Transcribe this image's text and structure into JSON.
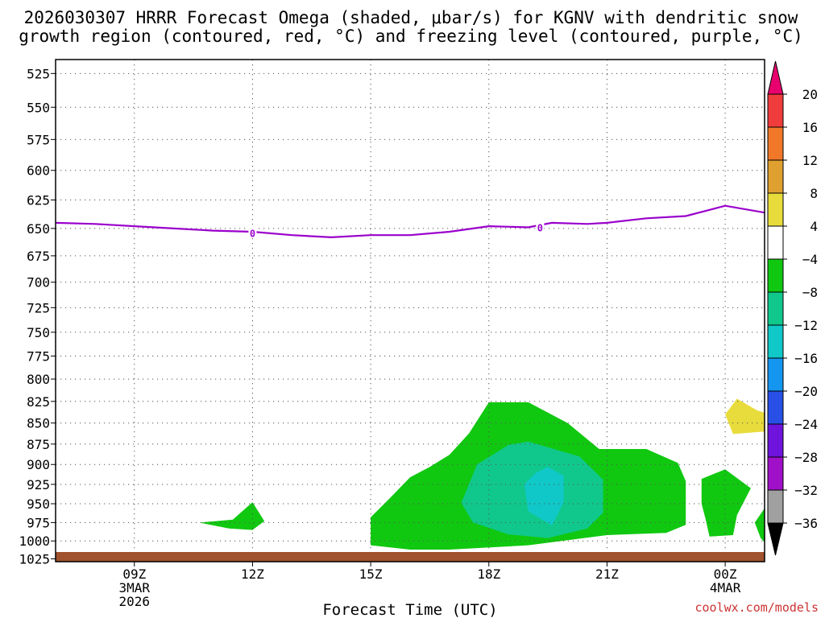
{
  "title_line1": "2026030307 HRRR Forecast Omega (shaded, μbar/s) for KGNV with dendritic snow",
  "title_line2": "growth region (contoured, red, °C) and freezing level (contoured, purple, °C)",
  "credit": "coolwx.com/models",
  "colors": {
    "freezing_line": "#9a00cc",
    "ground": "#a0522d",
    "credit": "#cc3333"
  },
  "chart_data": {
    "type": "contour",
    "xlabel": "Forecast Time (UTC)",
    "ylabel": "",
    "x_range_hours": [
      7,
      25
    ],
    "y_range_mb": [
      525,
      1025
    ],
    "y_scale": "log-pressure (inverted)",
    "grid": true,
    "y_ticks": [
      525,
      550,
      575,
      600,
      625,
      650,
      675,
      700,
      725,
      750,
      775,
      800,
      825,
      850,
      875,
      900,
      925,
      950,
      975,
      1000,
      1025
    ],
    "x_ticks": [
      {
        "hour": 9,
        "label": "09Z",
        "date": "3MAR",
        "year": "2026"
      },
      {
        "hour": 12,
        "label": "12Z"
      },
      {
        "hour": 15,
        "label": "15Z"
      },
      {
        "hour": 18,
        "label": "18Z"
      },
      {
        "hour": 21,
        "label": "21Z"
      },
      {
        "hour": 24,
        "label": "00Z",
        "date": "4MAR"
      }
    ],
    "colorbar": {
      "labels": [
        "20",
        "16",
        "12",
        "8",
        "4",
        "−4",
        "−8",
        "−12",
        "−16",
        "−20",
        "−24",
        "−28",
        "−32",
        "−36"
      ],
      "bins": [
        {
          "from": 20,
          "color": "#e8006e"
        },
        {
          "from": 16,
          "to": 20,
          "color": "#f03c3c"
        },
        {
          "from": 12,
          "to": 16,
          "color": "#f07828"
        },
        {
          "from": 8,
          "to": 12,
          "color": "#e0a030"
        },
        {
          "from": 4,
          "to": 8,
          "color": "#e8dc3c"
        },
        {
          "from": -4,
          "to": 4,
          "color": "#ffffff"
        },
        {
          "from": -8,
          "to": -4,
          "color": "#10c810"
        },
        {
          "from": -12,
          "to": -8,
          "color": "#10c88c"
        },
        {
          "from": -16,
          "to": -12,
          "color": "#10c8c8"
        },
        {
          "from": -20,
          "to": -16,
          "color": "#1496f0"
        },
        {
          "from": -24,
          "to": -20,
          "color": "#2850e6"
        },
        {
          "from": -28,
          "to": -24,
          "color": "#6e14dc"
        },
        {
          "from": -32,
          "to": -28,
          "color": "#a010c8"
        },
        {
          "from": -36,
          "to": -32,
          "color": "#a0a0a0"
        },
        {
          "to": -36,
          "color": "#000000"
        }
      ]
    },
    "freezing_level": {
      "label": "0",
      "label_points": [
        {
          "hour": 12,
          "p": 654
        },
        {
          "hour": 19.3,
          "p": 649
        }
      ],
      "points": [
        [
          7,
          645
        ],
        [
          8,
          646
        ],
        [
          9,
          648
        ],
        [
          10,
          650
        ],
        [
          11,
          652
        ],
        [
          12,
          653
        ],
        [
          13,
          656
        ],
        [
          14,
          658
        ],
        [
          15,
          656
        ],
        [
          16,
          656
        ],
        [
          17,
          653
        ],
        [
          18,
          648
        ],
        [
          19,
          649
        ],
        [
          19.6,
          645
        ],
        [
          20.5,
          646
        ],
        [
          21,
          645
        ],
        [
          22,
          641
        ],
        [
          23,
          639
        ],
        [
          24,
          630
        ],
        [
          25,
          636
        ]
      ]
    },
    "omega_regions": [
      {
        "name": "-4 to -8",
        "color": "#10c810",
        "points": [
          [
            10.65,
            975
          ],
          [
            11.5,
            971
          ],
          [
            12,
            948
          ],
          [
            12.3,
            973
          ],
          [
            12,
            985
          ],
          [
            11.4,
            983
          ]
        ]
      },
      {
        "name": "-4 to -8",
        "color": "#10c810",
        "points": [
          [
            15,
            1000
          ],
          [
            15,
            968
          ],
          [
            15.5,
            942
          ],
          [
            16,
            916
          ],
          [
            16.5,
            903
          ],
          [
            17,
            888
          ],
          [
            17.5,
            862
          ],
          [
            18,
            826
          ],
          [
            19,
            826
          ],
          [
            20,
            850
          ],
          [
            20.8,
            881
          ],
          [
            22,
            881
          ],
          [
            22.8,
            898
          ],
          [
            23,
            921
          ],
          [
            23,
            978
          ],
          [
            22.5,
            989
          ],
          [
            21,
            992
          ],
          [
            19,
            1006
          ],
          [
            17,
            1012
          ],
          [
            16,
            1012
          ],
          [
            15,
            1006
          ]
        ]
      },
      {
        "name": "-8 to -12",
        "color": "#10c88c",
        "points": [
          [
            17.3,
            949
          ],
          [
            17.7,
            900
          ],
          [
            18.5,
            876
          ],
          [
            19,
            872
          ],
          [
            20.3,
            890
          ],
          [
            20.9,
            919
          ],
          [
            20.9,
            962
          ],
          [
            20.5,
            983
          ],
          [
            19.5,
            996
          ],
          [
            18.5,
            991
          ],
          [
            17.6,
            975
          ]
        ]
      },
      {
        "name": "-12 to -16",
        "color": "#10c8c8",
        "points": [
          [
            18.9,
            925
          ],
          [
            19.2,
            910
          ],
          [
            19.5,
            903
          ],
          [
            19.9,
            914
          ],
          [
            19.9,
            948
          ],
          [
            19.6,
            979
          ],
          [
            19,
            960
          ]
        ]
      },
      {
        "name": "-4 to -8",
        "color": "#10c810",
        "points": [
          [
            23.4,
            918
          ],
          [
            24,
            906
          ],
          [
            24.65,
            930
          ],
          [
            24.3,
            965
          ],
          [
            24.2,
            992
          ],
          [
            23.6,
            994
          ],
          [
            23.5,
            970
          ],
          [
            23.4,
            950
          ]
        ]
      },
      {
        "name": "-4 to -8",
        "color": "#10c810",
        "points": [
          [
            25,
            956
          ],
          [
            24.75,
            975
          ],
          [
            24.9,
            996
          ],
          [
            25,
            1002
          ]
        ]
      },
      {
        "name": "4 to 8",
        "color": "#e8dc3c",
        "points": [
          [
            24,
            840
          ],
          [
            24.3,
            822
          ],
          [
            24.8,
            835
          ],
          [
            25,
            838
          ],
          [
            25,
            860
          ],
          [
            24.2,
            863
          ]
        ]
      }
    ]
  }
}
